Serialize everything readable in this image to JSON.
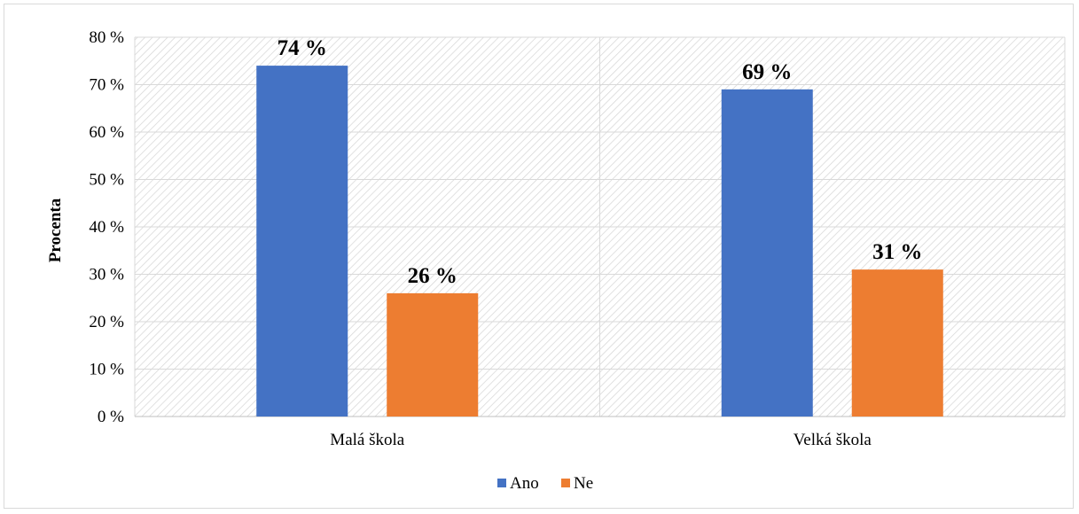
{
  "chart_data": {
    "type": "bar",
    "title": "",
    "xlabel": "",
    "ylabel": "Procenta",
    "ylim": [
      0,
      80
    ],
    "y_ticks": [
      0,
      10,
      20,
      30,
      40,
      50,
      60,
      70,
      80
    ],
    "y_tick_labels": [
      "0 %",
      "10 %",
      "20 %",
      "30 %",
      "40 %",
      "50 %",
      "60 %",
      "70 %",
      "80 %"
    ],
    "categories": [
      "Malá škola",
      "Velká škola"
    ],
    "series": [
      {
        "name": "Ano",
        "color": "#4472c4",
        "values": [
          74,
          69
        ],
        "labels": [
          "74 %",
          "69 %"
        ]
      },
      {
        "name": "Ne",
        "color": "#ed7d31",
        "values": [
          26,
          31
        ],
        "labels": [
          "26 %",
          "31 %"
        ]
      }
    ],
    "grid": true,
    "legend": "bottom",
    "plot_background": "hatched"
  }
}
